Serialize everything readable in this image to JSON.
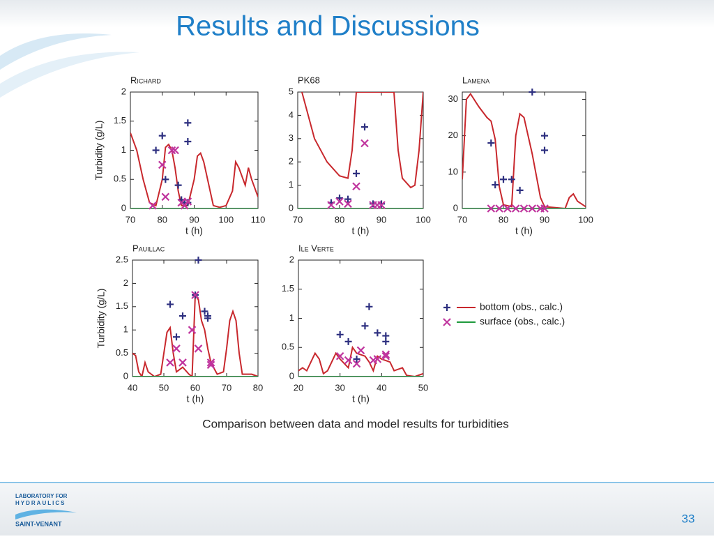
{
  "slide": {
    "title": "Results and Discussions",
    "caption": "Comparison between data and model results for turbidities",
    "page_number": "33",
    "logo": [
      "LABORATORY FOR",
      "HYDRAULICS",
      "SAINT-VENANT"
    ]
  },
  "legend": [
    {
      "name": "bottom (obs., calc.)",
      "marker": "+",
      "marker_color": "#2e3080",
      "line_color": "#c8282d"
    },
    {
      "name": "surface (obs., calc.)",
      "marker": "x",
      "marker_color": "#c0359e",
      "line_color": "#1e9a3c"
    }
  ],
  "chart_data": [
    {
      "type": "line",
      "title": "Richard",
      "ylabel": "Turbidity (g/L)",
      "xlabel": "t (h)",
      "xlim": [
        70,
        110
      ],
      "xticks": [
        70,
        80,
        90,
        100,
        110
      ],
      "ylim": [
        0,
        2
      ],
      "yticks": [
        0,
        0.5,
        1,
        1.5,
        2
      ],
      "series": [
        {
          "kind": "line",
          "color": "#c8282d",
          "x": [
            70,
            72,
            74,
            76,
            78,
            80,
            81,
            82,
            83,
            84,
            85,
            86,
            88,
            90,
            91,
            92,
            93,
            95,
            96,
            98,
            100,
            102,
            103,
            104,
            106,
            107,
            108,
            110
          ],
          "values": [
            1.3,
            1.0,
            0.5,
            0.1,
            0.05,
            0.5,
            1.05,
            1.1,
            1.0,
            0.7,
            0.3,
            0.05,
            0.05,
            0.5,
            0.9,
            0.95,
            0.8,
            0.3,
            0.05,
            0.02,
            0.05,
            0.3,
            0.8,
            0.7,
            0.4,
            0.7,
            0.5,
            0.2
          ]
        },
        {
          "kind": "line",
          "color": "#1e9a3c",
          "x": [
            70,
            110
          ],
          "values": [
            0,
            0
          ]
        },
        {
          "kind": "marker",
          "marker": "+",
          "color": "#2e3080",
          "x": [
            78,
            80,
            81,
            85,
            86,
            88,
            88,
            88,
            87
          ],
          "values": [
            1.0,
            1.25,
            0.5,
            0.4,
            0.15,
            1.47,
            1.15,
            0.1,
            0.1
          ]
        },
        {
          "kind": "marker",
          "marker": "x",
          "color": "#c0359e",
          "x": [
            77,
            80,
            81,
            83,
            84,
            86,
            87,
            88
          ],
          "values": [
            0.05,
            0.75,
            0.2,
            1.0,
            1.0,
            0.1,
            0.05,
            0.12
          ]
        }
      ]
    },
    {
      "type": "line",
      "title": "PK68",
      "xlabel": "t (h)",
      "xlim": [
        70,
        100
      ],
      "xticks": [
        70,
        80,
        90,
        100
      ],
      "ylim": [
        0,
        5
      ],
      "yticks": [
        0,
        1,
        2,
        3,
        4,
        5
      ],
      "series": [
        {
          "kind": "line",
          "color": "#c8282d",
          "x": [
            71,
            74,
            77,
            80,
            82,
            83,
            84,
            93,
            94,
            95,
            97,
            98,
            99,
            100
          ],
          "values": [
            5,
            3,
            2,
            1.4,
            1.3,
            2.5,
            5,
            5,
            2.5,
            1.3,
            0.9,
            1.0,
            2.5,
            5
          ]
        },
        {
          "kind": "line",
          "color": "#1e9a3c",
          "x": [
            70,
            100
          ],
          "values": [
            0,
            0
          ]
        },
        {
          "kind": "marker",
          "marker": "+",
          "color": "#2e3080",
          "x": [
            78,
            80,
            82,
            84,
            86,
            88,
            90
          ],
          "values": [
            0.25,
            0.45,
            0.4,
            1.5,
            3.5,
            0.2,
            0.2
          ]
        },
        {
          "kind": "marker",
          "marker": "x",
          "color": "#c0359e",
          "x": [
            78,
            80,
            82,
            84,
            86,
            88,
            89,
            90
          ],
          "values": [
            0.15,
            0.3,
            0.2,
            0.95,
            2.8,
            0.15,
            0.15,
            0.15
          ]
        }
      ]
    },
    {
      "type": "line",
      "title": "Lamena",
      "xlabel": "t (h)",
      "xlim": [
        70,
        100
      ],
      "xticks": [
        70,
        80,
        90,
        100
      ],
      "ylim": [
        0,
        32
      ],
      "yticks": [
        0,
        10,
        20,
        30
      ],
      "series": [
        {
          "kind": "line",
          "color": "#c8282d",
          "x": [
            70,
            71,
            72,
            74,
            76,
            77,
            78,
            79,
            80,
            82,
            83,
            84,
            85,
            87,
            89,
            90,
            95,
            96,
            97,
            98,
            100
          ],
          "values": [
            8,
            30,
            31.5,
            28,
            25,
            24,
            19,
            6,
            1,
            0.5,
            20,
            26,
            25,
            15,
            3,
            0.5,
            0,
            3,
            4,
            2,
            0.5
          ]
        },
        {
          "kind": "line",
          "color": "#1e9a3c",
          "x": [
            70,
            100
          ],
          "values": [
            0,
            0
          ]
        },
        {
          "kind": "marker",
          "marker": "+",
          "color": "#2e3080",
          "x": [
            77,
            78,
            80,
            82,
            84,
            87,
            90,
            90
          ],
          "values": [
            18,
            6.5,
            8,
            8,
            5,
            32,
            20,
            16
          ]
        },
        {
          "kind": "marker",
          "marker": "x",
          "color": "#c0359e",
          "x": [
            77,
            79,
            81,
            83,
            85,
            87,
            89,
            90
          ],
          "values": [
            0,
            0,
            0,
            0,
            0,
            0,
            0,
            0
          ]
        }
      ]
    },
    {
      "type": "line",
      "title": "Pauillac",
      "ylabel": "Turbidity (g/L)",
      "xlabel": "t (h)",
      "xlim": [
        40,
        80
      ],
      "xticks": [
        40,
        50,
        60,
        70,
        80
      ],
      "ylim": [
        0,
        2.5
      ],
      "yticks": [
        0,
        0.5,
        1,
        1.5,
        2,
        2.5
      ],
      "series": [
        {
          "kind": "line",
          "color": "#c8282d",
          "x": [
            40,
            41,
            42,
            43,
            44,
            45,
            47,
            49,
            50,
            51,
            52,
            53,
            54,
            56,
            58,
            59,
            60,
            61,
            62,
            63,
            64,
            65,
            67,
            69,
            70,
            71,
            72,
            73,
            74,
            75,
            78,
            80
          ],
          "values": [
            0.5,
            0.45,
            0.1,
            0,
            0.3,
            0.1,
            0,
            0.05,
            0.5,
            0.95,
            1.05,
            0.5,
            0.1,
            0.2,
            0.05,
            0,
            1.75,
            1.65,
            1.2,
            1.0,
            0.6,
            0.3,
            0.05,
            0.1,
            0.6,
            1.2,
            1.4,
            1.2,
            0.5,
            0.05,
            0.05,
            0
          ]
        },
        {
          "kind": "line",
          "color": "#1e9a3c",
          "x": [
            40,
            80
          ],
          "values": [
            0,
            0
          ]
        },
        {
          "kind": "marker",
          "marker": "+",
          "color": "#2e3080",
          "x": [
            52,
            54,
            56,
            60,
            61,
            63,
            64,
            64
          ],
          "values": [
            1.55,
            0.85,
            1.3,
            1.75,
            2.5,
            1.4,
            1.3,
            1.25
          ]
        },
        {
          "kind": "marker",
          "marker": "x",
          "color": "#c0359e",
          "x": [
            52,
            54,
            56,
            59,
            60,
            61,
            65,
            65
          ],
          "values": [
            0.3,
            0.6,
            0.3,
            1.0,
            1.75,
            0.6,
            0.25,
            0.3
          ]
        }
      ]
    },
    {
      "type": "line",
      "title": "Ile Verte",
      "xlabel": "t (h)",
      "xlim": [
        20,
        50
      ],
      "xticks": [
        20,
        30,
        40,
        50
      ],
      "ylim": [
        0,
        2
      ],
      "yticks": [
        0,
        0.5,
        1,
        1.5,
        2
      ],
      "series": [
        {
          "kind": "line",
          "color": "#c8282d",
          "x": [
            20,
            21,
            22,
            24,
            25,
            26,
            27,
            29,
            30,
            32,
            33,
            34,
            36,
            37,
            38,
            39,
            40,
            42,
            43,
            45,
            46,
            48,
            50
          ],
          "values": [
            0.1,
            0.15,
            0.1,
            0.4,
            0.3,
            0.05,
            0.1,
            0.4,
            0.3,
            0.15,
            0.5,
            0.4,
            0.35,
            0.25,
            0.1,
            0.35,
            0.3,
            0.25,
            0.1,
            0.15,
            0.02,
            0,
            0.05
          ]
        },
        {
          "kind": "line",
          "color": "#1e9a3c",
          "x": [
            20,
            50
          ],
          "values": [
            0,
            0
          ]
        },
        {
          "kind": "marker",
          "marker": "+",
          "color": "#2e3080",
          "x": [
            30,
            32,
            34,
            36,
            37,
            39,
            41,
            41
          ],
          "values": [
            0.72,
            0.6,
            0.3,
            0.87,
            1.2,
            0.75,
            0.7,
            0.6
          ]
        },
        {
          "kind": "marker",
          "marker": "x",
          "color": "#c0359e",
          "x": [
            30,
            32,
            34,
            35,
            38,
            39,
            41,
            41
          ],
          "values": [
            0.35,
            0.28,
            0.22,
            0.45,
            0.28,
            0.3,
            0.35,
            0.38
          ]
        }
      ]
    }
  ]
}
